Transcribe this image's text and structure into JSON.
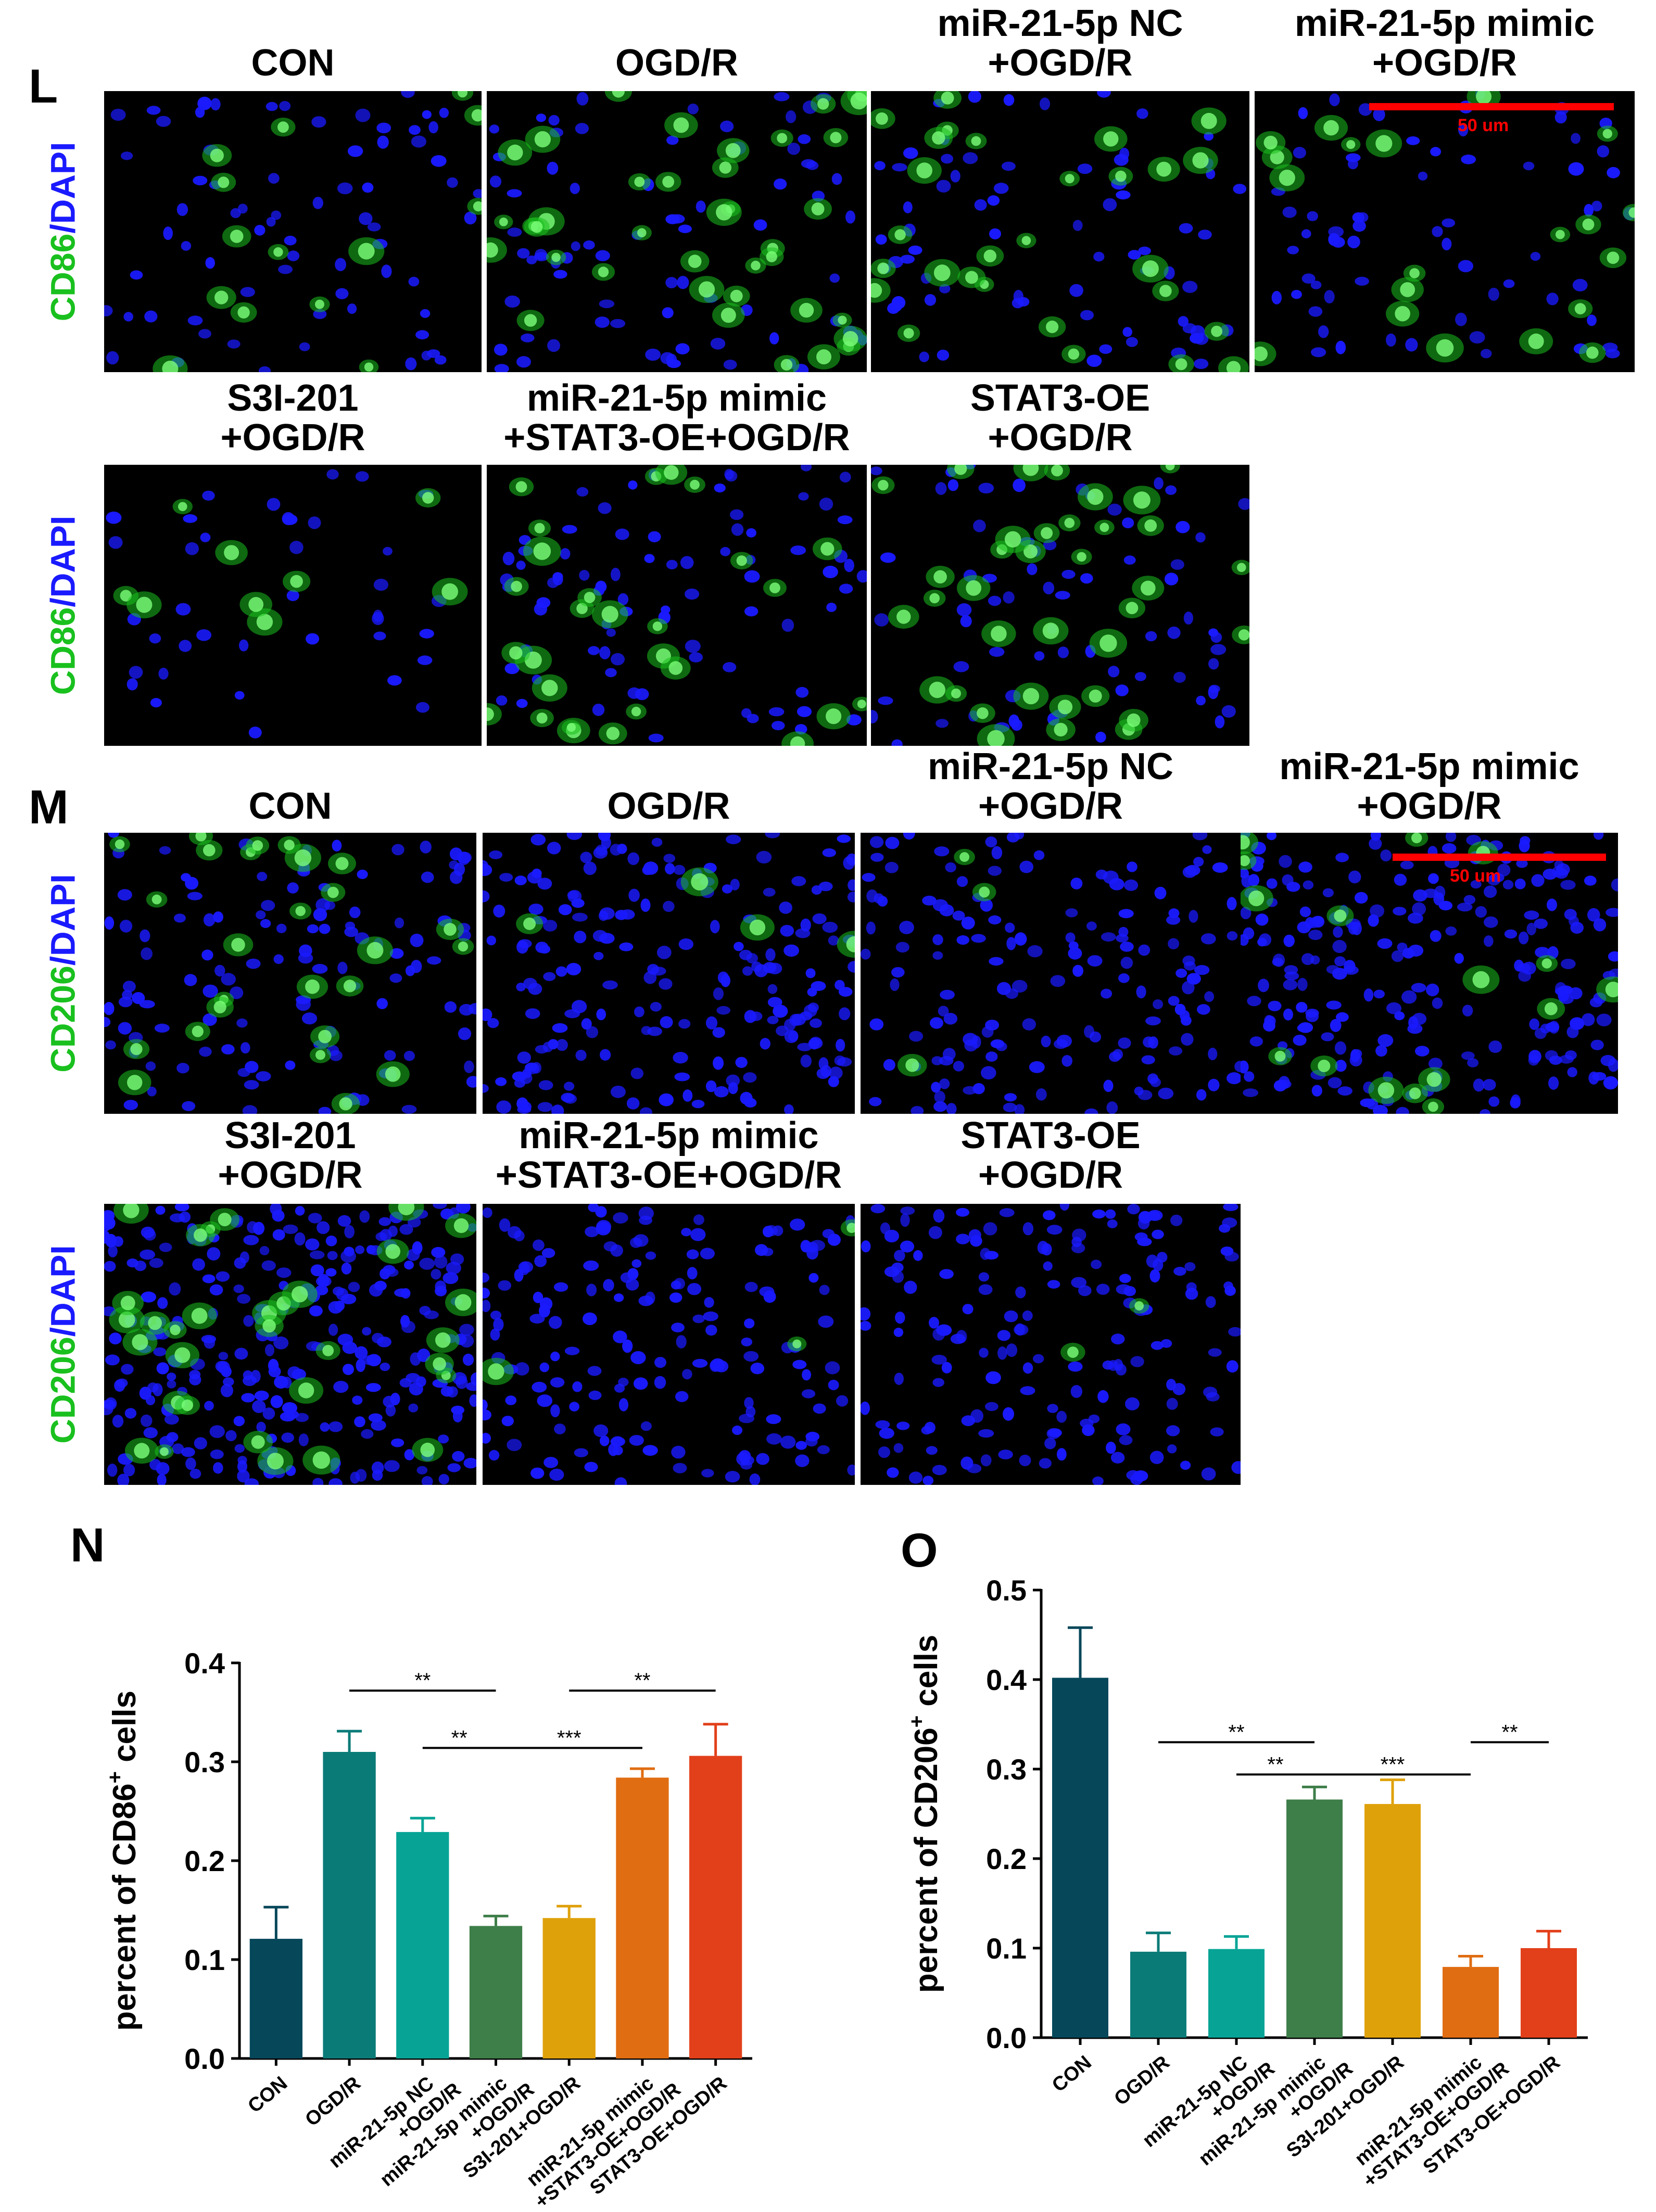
{
  "colors": {
    "green": "#19c01e",
    "blue": "#1a1aff",
    "scale": "#ff0000",
    "bar_colors": [
      "#06475a",
      "#0b7b78",
      "#07a496",
      "#3e7e49",
      "#dfa10a",
      "#e06d12",
      "#e2401b"
    ]
  },
  "L": {
    "letter": "L",
    "titles": [
      [
        "CON"
      ],
      [
        "OGD/R"
      ],
      [
        "miR-21-5p NC",
        "+OGD/R"
      ],
      [
        "miR-21-5p mimic",
        "+OGD/R"
      ],
      [
        "S3I-201",
        "+OGD/R"
      ],
      [
        "miR-21-5p mimic",
        "+STAT3-OE+OGD/R"
      ],
      [
        "STAT3-OE",
        "+OGD/R"
      ]
    ],
    "marker": "CD86",
    "stain": "/DAPI",
    "scale_label": "50 um"
  },
  "M": {
    "letter": "M",
    "titles": [
      [
        "CON"
      ],
      [
        "OGD/R"
      ],
      [
        "miR-21-5p NC",
        "+OGD/R"
      ],
      [
        "miR-21-5p mimic",
        "+OGD/R"
      ],
      [
        "S3I-201",
        "+OGD/R"
      ],
      [
        "miR-21-5p mimic",
        "+STAT3-OE+OGD/R"
      ],
      [
        "STAT3-OE",
        "+OGD/R"
      ]
    ],
    "marker": "CD206",
    "stain": "/DAPI",
    "scale_label": "50 um"
  },
  "chart_data": [
    {
      "panel": "N",
      "type": "bar",
      "ylabel_pre": "percent of CD86",
      "ylabel_sup": "+",
      "ylabel_post": " cells",
      "ylim": [
        0,
        0.4
      ],
      "yticks": [
        "0.0",
        "0.1",
        "0.2",
        "0.3",
        "0.4"
      ],
      "tick_values": [
        0,
        0.1,
        0.2,
        0.3,
        0.4
      ],
      "categories": [
        "CON",
        "OGD/R",
        "miR-21-5p NC+OGD/R",
        "miR-21-5p mimic+OGD/R",
        "S3I-201+OGD/R",
        "miR-21-5p mimic+STAT3-OE+OGD/R",
        "STAT3-OE+OGD/R"
      ],
      "category_lines": [
        [
          "CON"
        ],
        [
          "OGD/R"
        ],
        [
          "miR-21-5p NC",
          "+OGD/R"
        ],
        [
          "miR-21-5p mimic",
          "+OGD/R"
        ],
        [
          "S3I-201+OGD/R"
        ],
        [
          "miR-21-5p mimic",
          "+STAT3-OE+OGD/R"
        ],
        [
          "STAT3-OE+OGD/R"
        ]
      ],
      "values": [
        0.121,
        0.31,
        0.229,
        0.134,
        0.142,
        0.284,
        0.306
      ],
      "errors": [
        0.032,
        0.021,
        0.014,
        0.01,
        0.012,
        0.009,
        0.032
      ],
      "significance": [
        {
          "from": 1,
          "to": 3,
          "label": "**",
          "y": 0.372
        },
        {
          "from": 2,
          "to": 3,
          "label": "**",
          "y": 0.314
        },
        {
          "from": 3,
          "to": 5,
          "label": "***",
          "y": 0.314
        },
        {
          "from": 4,
          "to": 6,
          "label": "**",
          "y": 0.372
        }
      ]
    },
    {
      "panel": "O",
      "type": "bar",
      "ylabel_pre": "percent of CD206",
      "ylabel_sup": "+",
      "ylabel_post": " cells",
      "ylim": [
        0,
        0.5
      ],
      "yticks": [
        "0.0",
        "0.1",
        "0.2",
        "0.3",
        "0.4",
        "0.5"
      ],
      "tick_values": [
        0,
        0.1,
        0.2,
        0.3,
        0.4,
        0.5
      ],
      "categories": [
        "CON",
        "OGD/R",
        "miR-21-5p NC+OGD/R",
        "miR-21-5p mimic+OGD/R",
        "S3I-201+OGD/R",
        "miR-21-5p mimic+STAT3-OE+OGD/R",
        "STAT3-OE+OGD/R"
      ],
      "category_lines": [
        [
          "CON"
        ],
        [
          "OGD/R"
        ],
        [
          "miR-21-5p NC",
          "+OGD/R"
        ],
        [
          "miR-21-5p mimic",
          "+OGD/R"
        ],
        [
          "S3I-201+OGD/R"
        ],
        [
          "miR-21-5p mimic",
          "+STAT3-OE+OGD/R"
        ],
        [
          "STAT3-OE+OGD/R"
        ]
      ],
      "values": [
        0.402,
        0.096,
        0.099,
        0.266,
        0.261,
        0.079,
        0.1
      ],
      "errors": [
        0.056,
        0.021,
        0.014,
        0.014,
        0.027,
        0.012,
        0.019
      ],
      "significance": [
        {
          "from": 1,
          "to": 3,
          "label": "**",
          "y": 0.33
        },
        {
          "from": 2,
          "to": 3,
          "label": "**",
          "y": 0.294
        },
        {
          "from": 3,
          "to": 5,
          "label": "***",
          "y": 0.294
        },
        {
          "from": 5,
          "to": 6,
          "label": "**",
          "y": 0.33
        }
      ]
    }
  ]
}
